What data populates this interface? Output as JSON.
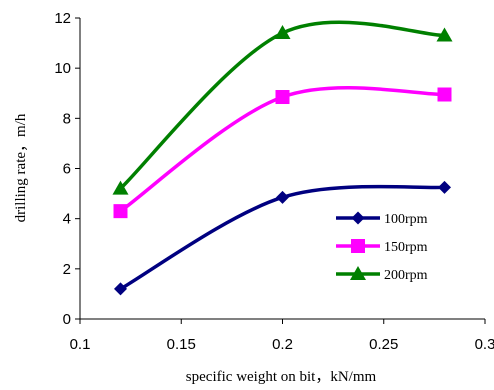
{
  "chart_data": {
    "type": "line",
    "title": "",
    "xlabel": "specific weight on bit，kN/mm",
    "ylabel": "drilling rate，m/h",
    "xlim": [
      0.1,
      0.3
    ],
    "ylim": [
      0,
      12
    ],
    "x_ticks": [
      "0.1",
      "0.15",
      "0.2",
      "0.25",
      "0.3"
    ],
    "y_ticks": [
      "0",
      "2",
      "4",
      "6",
      "8",
      "10",
      "12"
    ],
    "x": [
      0.12,
      0.2,
      0.28
    ],
    "grid": false,
    "legend_position": "bottom-right",
    "series": [
      {
        "name": "100rpm",
        "values": [
          1.2,
          4.85,
          5.25
        ],
        "color": "#000080",
        "marker": "diamond"
      },
      {
        "name": "150rpm",
        "values": [
          4.3,
          8.85,
          8.95
        ],
        "color": "#FF00FF",
        "marker": "square"
      },
      {
        "name": "200rpm",
        "values": [
          5.2,
          11.4,
          11.3
        ],
        "color": "#008000",
        "marker": "triangle"
      }
    ]
  }
}
